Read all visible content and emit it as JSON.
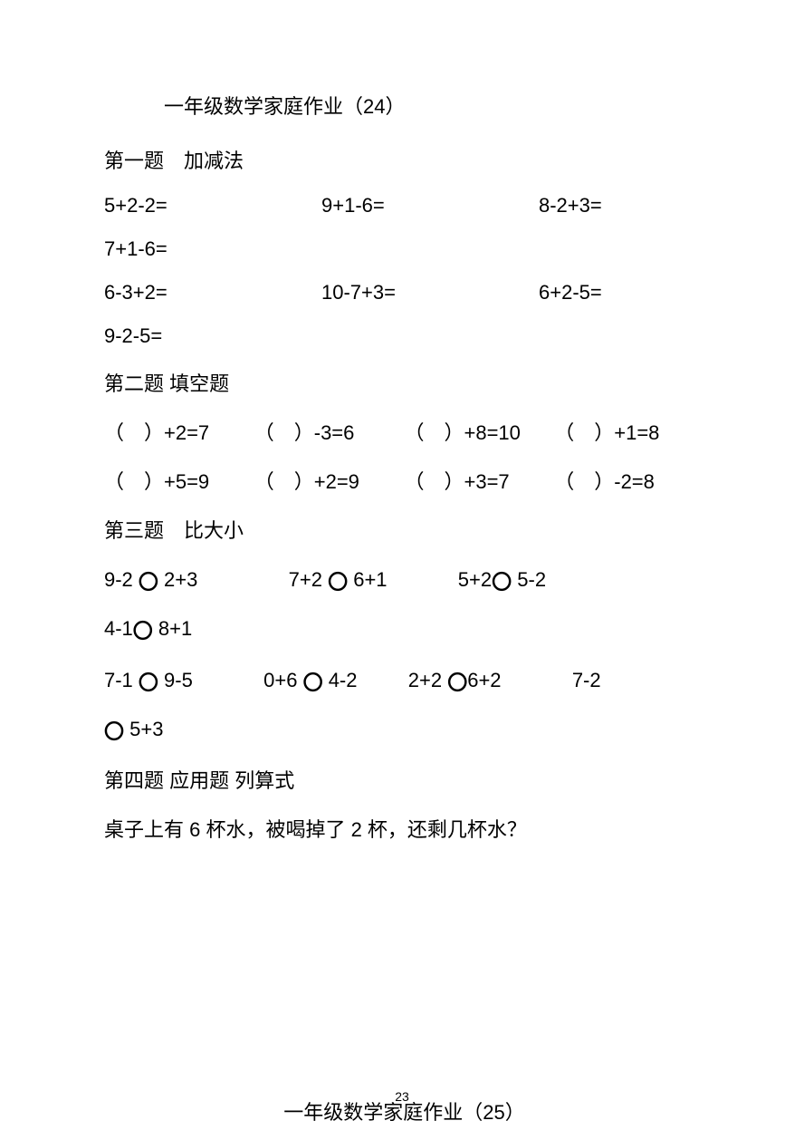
{
  "title": "一年级数学家庭作业（24）",
  "section1": {
    "header": "第一题　加减法",
    "row1": {
      "eq1": "5+2-2=",
      "eq2": "9+1-6=",
      "eq3": "8-2+3="
    },
    "row2": {
      "eq1": "7+1-6="
    },
    "row3": {
      "eq1": "6-3+2=",
      "eq2": "10-7+3=",
      "eq3": "6+2-5="
    },
    "row4": {
      "eq1": "9-2-5="
    }
  },
  "section2": {
    "header": "第二题 填空题",
    "row1": {
      "fb1": "（　）+2=7",
      "fb2": "（　）-3=6",
      "fb3": "（　）+8=10",
      "fb4": "（　）+1=8"
    },
    "row2": {
      "fb1": "（　）+5=9",
      "fb2": "（　）+2=9",
      "fb3": "（　）+3=7",
      "fb4": "（　）-2=8"
    }
  },
  "section3": {
    "header": "第三题　比大小",
    "circle": "〇",
    "row1": {
      "c1a": "9-2 ",
      "c1b": " 2+3",
      "c2a": "7+2 ",
      "c2b": " 6+1",
      "c3a": "5+2",
      "c3b": " 5-2"
    },
    "row2": {
      "c1a": "4-1",
      "c1b": " 8+1"
    },
    "row3": {
      "c1a": "7-1 ",
      "c1b": " 9-5",
      "c2a": "0+6 ",
      "c2b": " 4-2",
      "c3a": "2+2 ",
      "c3b": "6+2",
      "c4a": "7-2"
    },
    "row4": {
      "c1b": " 5+3"
    }
  },
  "section4": {
    "header": "第四题 应用题 列算式",
    "problem": "桌子上有 6 杯水，被喝掉了 2 杯，还剩几杯水？"
  },
  "nextTitle": "一年级数学家庭作业（25）",
  "pageNumber": "23"
}
